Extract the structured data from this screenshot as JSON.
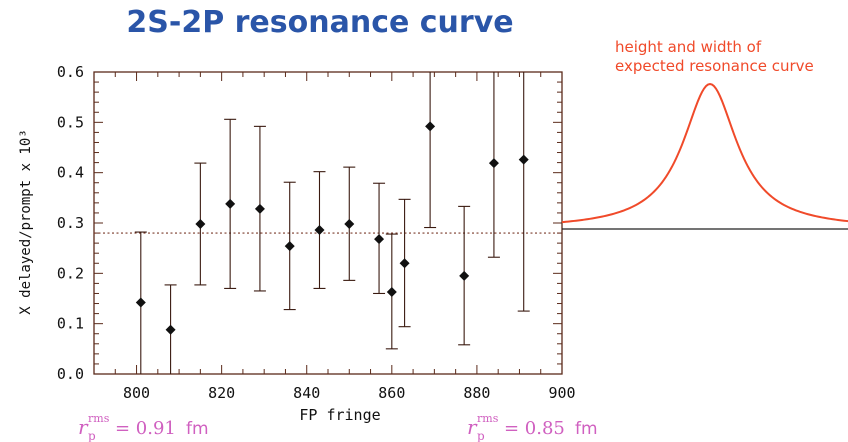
{
  "chart_data": {
    "type": "scatter",
    "title": "2S-2P resonance curve",
    "xlabel": "FP fringe",
    "ylabel": "X delayed/prompt x 10³",
    "xlim": [
      790,
      900
    ],
    "ylim": [
      0,
      0.6
    ],
    "x_ticks": [
      "800",
      "820",
      "840",
      "860",
      "880",
      "900"
    ],
    "y_ticks": [
      "0.0",
      "0.1",
      "0.2",
      "0.3",
      "0.4",
      "0.5",
      "0.6"
    ],
    "baseline": 0.28,
    "points": [
      {
        "x": 801,
        "y": 0.142,
        "lo": 0.0,
        "hi": 0.282
      },
      {
        "x": 808,
        "y": 0.088,
        "lo": 0.0,
        "hi": 0.177
      },
      {
        "x": 815,
        "y": 0.298,
        "lo": 0.177,
        "hi": 0.419
      },
      {
        "x": 822,
        "y": 0.338,
        "lo": 0.17,
        "hi": 0.506
      },
      {
        "x": 829,
        "y": 0.328,
        "lo": 0.165,
        "hi": 0.492
      },
      {
        "x": 836,
        "y": 0.254,
        "lo": 0.128,
        "hi": 0.381
      },
      {
        "x": 843,
        "y": 0.286,
        "lo": 0.17,
        "hi": 0.402
      },
      {
        "x": 850,
        "y": 0.298,
        "lo": 0.186,
        "hi": 0.411
      },
      {
        "x": 857,
        "y": 0.268,
        "lo": 0.16,
        "hi": 0.379
      },
      {
        "x": 860,
        "y": 0.163,
        "lo": 0.05,
        "hi": 0.278
      },
      {
        "x": 863,
        "y": 0.22,
        "lo": 0.094,
        "hi": 0.347
      },
      {
        "x": 869,
        "y": 0.492,
        "lo": 0.291,
        "hi": 0.6
      },
      {
        "x": 877,
        "y": 0.195,
        "lo": 0.058,
        "hi": 0.333
      },
      {
        "x": 884,
        "y": 0.419,
        "lo": 0.232,
        "hi": 0.6
      },
      {
        "x": 891,
        "y": 0.426,
        "lo": 0.125,
        "hi": 0.6
      }
    ]
  },
  "annotation": {
    "line1": "height and width of",
    "line2": "expected resonance curve"
  },
  "radius_labels": {
    "left_value": "= 0.91",
    "right_value": "= 0.85",
    "unit": "fm",
    "symbol": "r",
    "sub": "p",
    "sup": "rms"
  },
  "colors": {
    "title": "#2a55a8",
    "marker": "#111111",
    "resonance_curve": "#f04a2a",
    "radius_label": "#d060c0",
    "baseline": "#7a3a2a"
  }
}
